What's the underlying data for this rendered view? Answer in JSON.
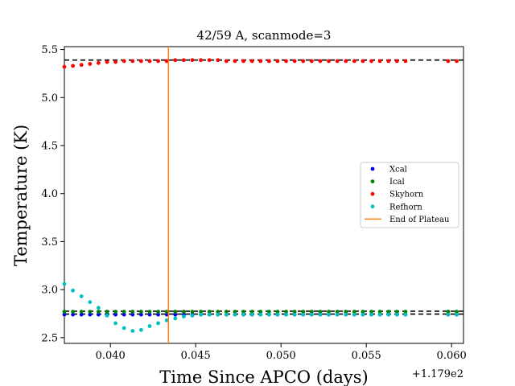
{
  "chart_data": {
    "type": "scatter",
    "title": "42/59 A, scanmode=3",
    "xlabel": "Time Since APCO (days)",
    "ylabel": "Temperature (K)",
    "x_offset_label": "+1.179e2",
    "xlim": [
      0.0373,
      0.0607
    ],
    "ylim": [
      2.44,
      5.53
    ],
    "xticks": [
      0.04,
      0.045,
      0.05,
      0.055,
      0.06
    ],
    "xtick_labels": [
      "0.040",
      "0.045",
      "0.050",
      "0.055",
      "0.060"
    ],
    "yticks": [
      2.5,
      3.0,
      3.5,
      4.0,
      4.5,
      5.0,
      5.5
    ],
    "ytick_labels": [
      "2.5",
      "3.0",
      "3.5",
      "4.0",
      "4.5",
      "5.0",
      "5.5"
    ],
    "grid": false,
    "legend_position": "center-right",
    "series": [
      {
        "name": "Xcal",
        "color": "#0000ff",
        "marker": "dot",
        "x": [
          0.0373,
          0.0378,
          0.0383,
          0.0388,
          0.0393,
          0.0398,
          0.0403,
          0.0408,
          0.0413,
          0.0418,
          0.0423,
          0.0428,
          0.0433,
          0.0438,
          0.0443,
          0.0448,
          0.0453,
          0.0458,
          0.0463,
          0.0468,
          0.0473,
          0.0478,
          0.0483,
          0.0488,
          0.0493,
          0.0498,
          0.0503,
          0.0508,
          0.0513,
          0.0518,
          0.0523,
          0.0528,
          0.0533,
          0.0538,
          0.0543,
          0.0548,
          0.0553,
          0.0558,
          0.0563,
          0.0568,
          0.0573,
          0.0598,
          0.0603
        ],
        "y": [
          2.74,
          2.74,
          2.74,
          2.74,
          2.74,
          2.74,
          2.74,
          2.74,
          2.74,
          2.74,
          2.74,
          2.74,
          2.74,
          2.74,
          2.74,
          2.74,
          2.74,
          2.74,
          2.74,
          2.74,
          2.74,
          2.74,
          2.74,
          2.74,
          2.74,
          2.74,
          2.74,
          2.74,
          2.74,
          2.74,
          2.74,
          2.74,
          2.74,
          2.74,
          2.74,
          2.74,
          2.74,
          2.74,
          2.74,
          2.74,
          2.74,
          2.74,
          2.74
        ]
      },
      {
        "name": "Ical",
        "color": "#008000",
        "marker": "dot",
        "x": [
          0.0373,
          0.0378,
          0.0383,
          0.0388,
          0.0393,
          0.0398,
          0.0403,
          0.0408,
          0.0413,
          0.0418,
          0.0423,
          0.0428,
          0.0433,
          0.0438,
          0.0443,
          0.0448,
          0.0453,
          0.0458,
          0.0463,
          0.0468,
          0.0473,
          0.0478,
          0.0483,
          0.0488,
          0.0493,
          0.0498,
          0.0503,
          0.0508,
          0.0513,
          0.0518,
          0.0523,
          0.0528,
          0.0533,
          0.0538,
          0.0543,
          0.0548,
          0.0553,
          0.0558,
          0.0563,
          0.0568,
          0.0573,
          0.0598,
          0.0603
        ],
        "y": [
          2.77,
          2.77,
          2.77,
          2.77,
          2.77,
          2.77,
          2.77,
          2.77,
          2.77,
          2.77,
          2.77,
          2.77,
          2.77,
          2.77,
          2.77,
          2.77,
          2.77,
          2.77,
          2.77,
          2.77,
          2.77,
          2.77,
          2.77,
          2.77,
          2.77,
          2.77,
          2.77,
          2.77,
          2.77,
          2.77,
          2.77,
          2.77,
          2.77,
          2.77,
          2.77,
          2.77,
          2.77,
          2.77,
          2.77,
          2.77,
          2.77,
          2.77,
          2.77
        ]
      },
      {
        "name": "Skyhorn",
        "color": "#ff0000",
        "marker": "dot",
        "x": [
          0.0373,
          0.0378,
          0.0383,
          0.0388,
          0.0393,
          0.0398,
          0.0403,
          0.0408,
          0.0413,
          0.0418,
          0.0423,
          0.0428,
          0.0433,
          0.0438,
          0.0443,
          0.0448,
          0.0453,
          0.0458,
          0.0463,
          0.0468,
          0.0473,
          0.0478,
          0.0483,
          0.0488,
          0.0493,
          0.0498,
          0.0503,
          0.0508,
          0.0513,
          0.0518,
          0.0523,
          0.0528,
          0.0533,
          0.0538,
          0.0543,
          0.0548,
          0.0553,
          0.0558,
          0.0563,
          0.0568,
          0.0573,
          0.0598,
          0.0603
        ],
        "y": [
          5.32,
          5.33,
          5.34,
          5.35,
          5.36,
          5.37,
          5.37,
          5.38,
          5.38,
          5.38,
          5.38,
          5.38,
          5.38,
          5.39,
          5.39,
          5.39,
          5.39,
          5.39,
          5.39,
          5.38,
          5.38,
          5.38,
          5.38,
          5.38,
          5.38,
          5.38,
          5.38,
          5.38,
          5.38,
          5.38,
          5.38,
          5.38,
          5.38,
          5.38,
          5.38,
          5.38,
          5.38,
          5.38,
          5.38,
          5.38,
          5.38,
          5.38,
          5.38
        ]
      },
      {
        "name": "Refhorn",
        "color": "#00bfbf",
        "marker": "dot",
        "x": [
          0.0373,
          0.0378,
          0.0383,
          0.0388,
          0.0393,
          0.0398,
          0.0403,
          0.0408,
          0.0413,
          0.0418,
          0.0423,
          0.0428,
          0.0433,
          0.0438,
          0.0443,
          0.0448,
          0.0453,
          0.0458,
          0.0463,
          0.0468,
          0.0473,
          0.0478,
          0.0483,
          0.0488,
          0.0493,
          0.0498,
          0.0503,
          0.0508,
          0.0513,
          0.0518,
          0.0523,
          0.0528,
          0.0533,
          0.0538,
          0.0543,
          0.0548,
          0.0553,
          0.0558,
          0.0563,
          0.0568,
          0.0573,
          0.0598,
          0.0603
        ],
        "y": [
          3.06,
          2.99,
          2.93,
          2.87,
          2.81,
          2.73,
          2.65,
          2.6,
          2.57,
          2.58,
          2.62,
          2.65,
          2.68,
          2.7,
          2.72,
          2.73,
          2.74,
          2.74,
          2.74,
          2.74,
          2.74,
          2.74,
          2.74,
          2.74,
          2.74,
          2.74,
          2.74,
          2.74,
          2.74,
          2.74,
          2.74,
          2.74,
          2.74,
          2.74,
          2.74,
          2.74,
          2.74,
          2.74,
          2.74,
          2.74,
          2.74,
          2.74,
          2.74
        ]
      }
    ],
    "reference_lines": [
      {
        "y": 5.39,
        "style": "dashed",
        "color": "#000000"
      },
      {
        "y": 2.775,
        "style": "dashed",
        "color": "#000000"
      },
      {
        "y": 2.745,
        "style": "dashed",
        "color": "#000000"
      }
    ],
    "vertical_lines": [
      {
        "name": "End of Plateau",
        "x": 0.0434,
        "color": "#ff7f0e"
      }
    ]
  }
}
